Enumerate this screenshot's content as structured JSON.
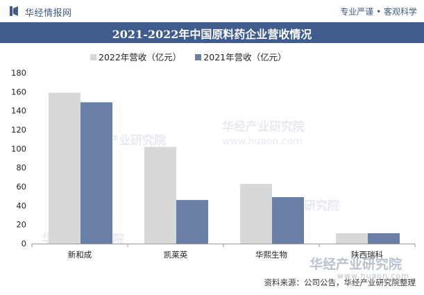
{
  "header": {
    "brand": "华经情报网",
    "motto": "专业严谨 • 客观科学"
  },
  "chart_data": {
    "type": "bar",
    "title": "2021-2022年中国原料药企业营收情况",
    "categories": [
      "新和成",
      "凯莱英",
      "华熙生物",
      "陕西瑞科"
    ],
    "series": [
      {
        "name": "2022年营收（亿元）",
        "values": [
          159,
          102,
          63,
          11
        ],
        "color": "#d8d8d8"
      },
      {
        "name": "2021年营收（亿元）",
        "values": [
          149,
          46,
          49,
          11
        ],
        "color": "#6a7fa5"
      }
    ],
    "ylim": [
      0,
      180
    ],
    "yticks": [
      0,
      20,
      40,
      60,
      80,
      100,
      120,
      140,
      160,
      180
    ],
    "xlabel": "",
    "ylabel": "",
    "legend_position": "top-left",
    "grid": false
  },
  "source": "资料来源：公司公告，华经产业研究院整理",
  "watermark": {
    "text": "华经产业研究院",
    "url": "www.huaon.com"
  },
  "colors": {
    "accent": "#3e5c8d"
  }
}
